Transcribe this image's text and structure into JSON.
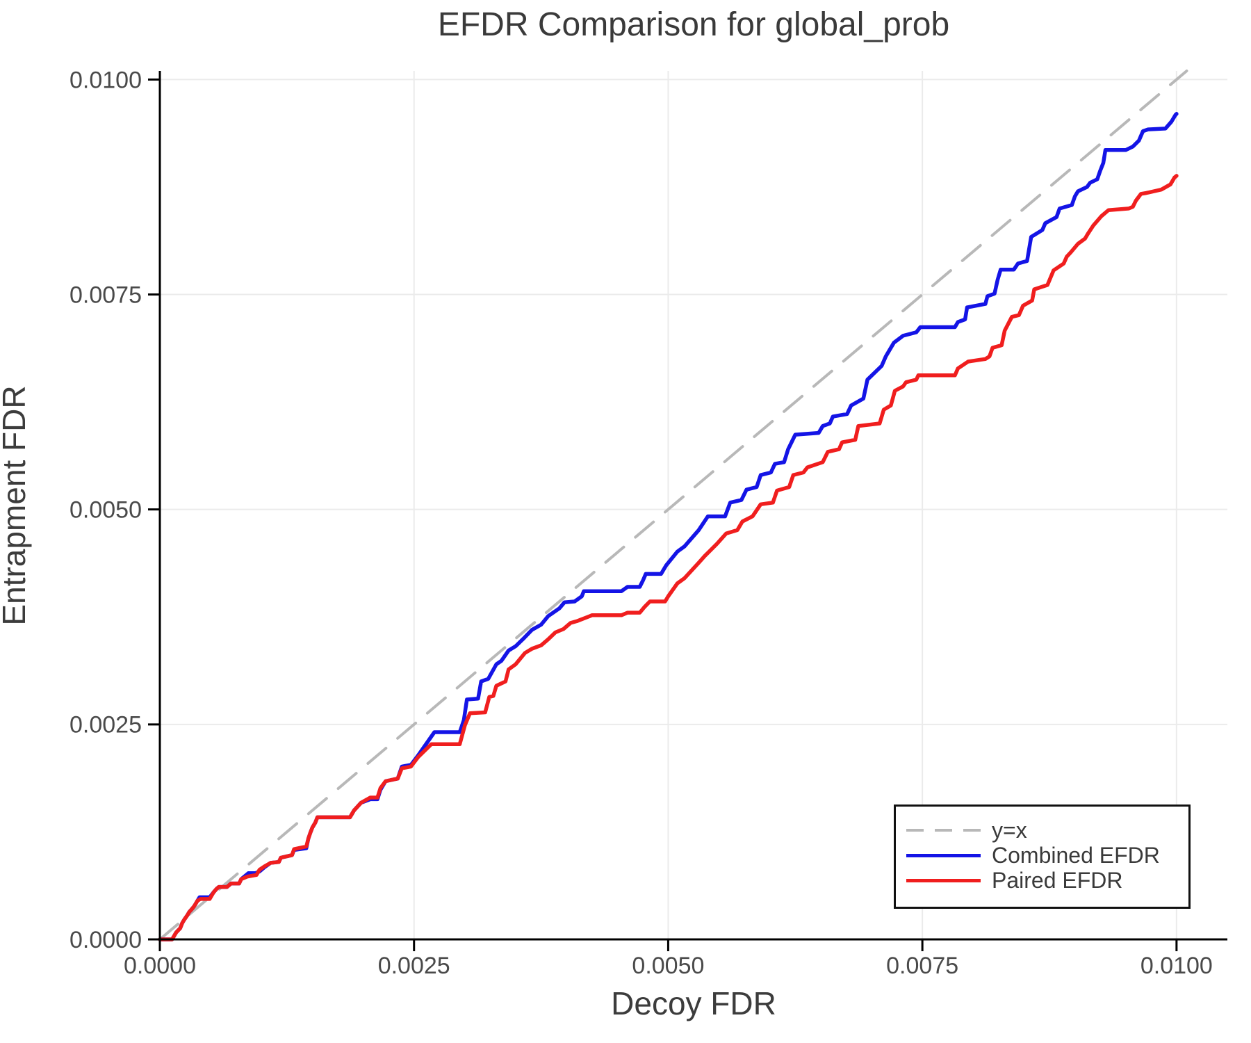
{
  "background": "#ffffff",
  "chart_data": {
    "type": "line",
    "title": "EFDR Comparison for global_prob",
    "xlabel": "Decoy FDR",
    "ylabel": "Entrapment FDR",
    "xlim": [
      0,
      0.0105
    ],
    "ylim": [
      0,
      0.0101
    ],
    "grid": true,
    "legend_position": "bottom-right",
    "x_ticks": [
      0,
      0.0025,
      0.005,
      0.0075,
      0.01
    ],
    "x_tick_labels": [
      "0.0000",
      "0.0025",
      "0.0050",
      "0.0075",
      "0.0100"
    ],
    "y_ticks": [
      0,
      0.0025,
      0.005,
      0.0075,
      0.01
    ],
    "y_tick_labels": [
      "0.0000",
      "0.0025",
      "0.0050",
      "0.0075",
      "0.0100"
    ],
    "colors": {
      "grid": "#ebebeb",
      "axis": "#000000",
      "tick_label": "#4a4a4a",
      "identity_line": "#b8b8b8",
      "combined": "#1414e6",
      "paired": "#f01e1e"
    },
    "series": [
      {
        "name": "y=x",
        "style": "dashed",
        "color": "#b8b8b8",
        "points": [
          [
            0,
            0
          ],
          [
            0.0101,
            0.0101
          ]
        ]
      },
      {
        "name": "Combined EFDR",
        "style": "solid",
        "color": "#1414e6",
        "points": [
          [
            0.0,
            0.0
          ],
          [
            0.00012,
            0.0
          ],
          [
            0.00016,
            8e-05
          ],
          [
            0.0002,
            0.00013
          ],
          [
            0.00022,
            0.00019
          ],
          [
            0.00024,
            0.00023
          ],
          [
            0.00027,
            0.00028
          ],
          [
            0.00029,
            0.00032
          ],
          [
            0.00032,
            0.00036
          ],
          [
            0.00034,
            0.00039
          ],
          [
            0.00037,
            0.00045
          ],
          [
            0.00039,
            0.00049
          ],
          [
            0.00049,
            0.00049
          ],
          [
            0.00053,
            0.00055
          ],
          [
            0.00056,
            0.00059
          ],
          [
            0.00058,
            0.00061
          ],
          [
            0.00066,
            0.00061
          ],
          [
            0.00068,
            0.00063
          ],
          [
            0.0007,
            0.00065
          ],
          [
            0.00078,
            0.00065
          ],
          [
            0.0008,
            0.0007
          ],
          [
            0.00084,
            0.00074
          ],
          [
            0.00087,
            0.00077
          ],
          [
            0.00094,
            0.00077
          ],
          [
            0.00098,
            0.00079
          ],
          [
            0.00103,
            0.00084
          ],
          [
            0.00109,
            0.00089
          ],
          [
            0.00117,
            0.0009
          ],
          [
            0.00119,
            0.00095
          ],
          [
            0.0013,
            0.00098
          ],
          [
            0.00132,
            0.00104
          ],
          [
            0.00144,
            0.00106
          ],
          [
            0.00146,
            0.00117
          ],
          [
            0.00148,
            0.00124
          ],
          [
            0.0015,
            0.0013
          ],
          [
            0.00153,
            0.00136
          ],
          [
            0.00155,
            0.00142
          ],
          [
            0.00187,
            0.00142
          ],
          [
            0.00191,
            0.0015
          ],
          [
            0.00198,
            0.00159
          ],
          [
            0.00207,
            0.00163
          ],
          [
            0.00214,
            0.00163
          ],
          [
            0.00217,
            0.00174
          ],
          [
            0.00222,
            0.00184
          ],
          [
            0.00234,
            0.00187
          ],
          [
            0.00238,
            0.00201
          ],
          [
            0.00247,
            0.00203
          ],
          [
            0.00254,
            0.00214
          ],
          [
            0.0027,
            0.00241
          ],
          [
            0.00295,
            0.00241
          ],
          [
            0.00299,
            0.00255
          ],
          [
            0.00302,
            0.00279
          ],
          [
            0.00313,
            0.0028
          ],
          [
            0.00316,
            0.003
          ],
          [
            0.00323,
            0.00303
          ],
          [
            0.00331,
            0.0032
          ],
          [
            0.00336,
            0.00324
          ],
          [
            0.00343,
            0.00336
          ],
          [
            0.0035,
            0.00341
          ],
          [
            0.00357,
            0.00349
          ],
          [
            0.00366,
            0.0036
          ],
          [
            0.00375,
            0.00366
          ],
          [
            0.00382,
            0.00376
          ],
          [
            0.00393,
            0.00385
          ],
          [
            0.00398,
            0.00392
          ],
          [
            0.00408,
            0.00393
          ],
          [
            0.00415,
            0.00399
          ],
          [
            0.00417,
            0.00405
          ],
          [
            0.00454,
            0.00405
          ],
          [
            0.0046,
            0.0041
          ],
          [
            0.00472,
            0.0041
          ],
          [
            0.00475,
            0.00417
          ],
          [
            0.00478,
            0.00425
          ],
          [
            0.00493,
            0.00425
          ],
          [
            0.00498,
            0.00435
          ],
          [
            0.00509,
            0.00451
          ],
          [
            0.00516,
            0.00457
          ],
          [
            0.0053,
            0.00476
          ],
          [
            0.00539,
            0.00492
          ],
          [
            0.00556,
            0.00492
          ],
          [
            0.00561,
            0.00508
          ],
          [
            0.00572,
            0.00511
          ],
          [
            0.00577,
            0.00523
          ],
          [
            0.00587,
            0.00526
          ],
          [
            0.00591,
            0.0054
          ],
          [
            0.00601,
            0.00543
          ],
          [
            0.00605,
            0.00553
          ],
          [
            0.00614,
            0.00555
          ],
          [
            0.00618,
            0.0057
          ],
          [
            0.00625,
            0.00587
          ],
          [
            0.00648,
            0.00589
          ],
          [
            0.00652,
            0.00597
          ],
          [
            0.00659,
            0.006
          ],
          [
            0.00662,
            0.00608
          ],
          [
            0.00676,
            0.00611
          ],
          [
            0.0068,
            0.00621
          ],
          [
            0.00692,
            0.00629
          ],
          [
            0.00696,
            0.00651
          ],
          [
            0.0071,
            0.00667
          ],
          [
            0.00714,
            0.00678
          ],
          [
            0.00722,
            0.00694
          ],
          [
            0.00731,
            0.00702
          ],
          [
            0.00744,
            0.00706
          ],
          [
            0.00748,
            0.00712
          ],
          [
            0.00782,
            0.00712
          ],
          [
            0.00785,
            0.00718
          ],
          [
            0.00792,
            0.00721
          ],
          [
            0.00794,
            0.00735
          ],
          [
            0.00812,
            0.00739
          ],
          [
            0.00814,
            0.00748
          ],
          [
            0.00821,
            0.00751
          ],
          [
            0.00824,
            0.00767
          ],
          [
            0.00827,
            0.00779
          ],
          [
            0.0084,
            0.00779
          ],
          [
            0.00844,
            0.00786
          ],
          [
            0.00853,
            0.00789
          ],
          [
            0.00857,
            0.00817
          ],
          [
            0.00868,
            0.00825
          ],
          [
            0.00871,
            0.00833
          ],
          [
            0.00882,
            0.0084
          ],
          [
            0.00885,
            0.0085
          ],
          [
            0.00897,
            0.00854
          ],
          [
            0.009,
            0.00864
          ],
          [
            0.00903,
            0.0087
          ],
          [
            0.00912,
            0.00875
          ],
          [
            0.00915,
            0.0088
          ],
          [
            0.00922,
            0.00884
          ],
          [
            0.00925,
            0.00894
          ],
          [
            0.00928,
            0.00903
          ],
          [
            0.0093,
            0.00918
          ],
          [
            0.0095,
            0.00918
          ],
          [
            0.00957,
            0.00922
          ],
          [
            0.00963,
            0.00929
          ],
          [
            0.00967,
            0.0094
          ],
          [
            0.00972,
            0.00942
          ],
          [
            0.00989,
            0.00943
          ],
          [
            0.00995,
            0.00951
          ],
          [
            0.00999,
            0.00959
          ],
          [
            0.01,
            0.0096
          ]
        ]
      },
      {
        "name": "Paired EFDR",
        "style": "solid",
        "color": "#f01e1e",
        "points": [
          [
            0.0,
            0.0
          ],
          [
            0.00012,
            0.0
          ],
          [
            0.00016,
            8e-05
          ],
          [
            0.0002,
            0.00013
          ],
          [
            0.00022,
            0.00019
          ],
          [
            0.00024,
            0.00023
          ],
          [
            0.00027,
            0.00028
          ],
          [
            0.00029,
            0.00032
          ],
          [
            0.00032,
            0.00036
          ],
          [
            0.00034,
            0.00039
          ],
          [
            0.00037,
            0.00045
          ],
          [
            0.0004,
            0.00047
          ],
          [
            0.00049,
            0.00047
          ],
          [
            0.00053,
            0.00055
          ],
          [
            0.00056,
            0.00059
          ],
          [
            0.00058,
            0.00061
          ],
          [
            0.00066,
            0.00061
          ],
          [
            0.00068,
            0.00063
          ],
          [
            0.0007,
            0.00065
          ],
          [
            0.00078,
            0.00065
          ],
          [
            0.0008,
            0.0007
          ],
          [
            0.00086,
            0.00073
          ],
          [
            0.00095,
            0.00075
          ],
          [
            0.00098,
            0.00081
          ],
          [
            0.00103,
            0.00085
          ],
          [
            0.00109,
            0.00089
          ],
          [
            0.00117,
            0.0009
          ],
          [
            0.00119,
            0.00095
          ],
          [
            0.0013,
            0.00098
          ],
          [
            0.00132,
            0.00105
          ],
          [
            0.00144,
            0.00108
          ],
          [
            0.00146,
            0.00117
          ],
          [
            0.00148,
            0.00124
          ],
          [
            0.0015,
            0.0013
          ],
          [
            0.00153,
            0.00136
          ],
          [
            0.00155,
            0.00142
          ],
          [
            0.00187,
            0.00142
          ],
          [
            0.00191,
            0.0015
          ],
          [
            0.00198,
            0.00159
          ],
          [
            0.00207,
            0.00165
          ],
          [
            0.00214,
            0.00165
          ],
          [
            0.00217,
            0.00176
          ],
          [
            0.00222,
            0.00184
          ],
          [
            0.00234,
            0.00187
          ],
          [
            0.00238,
            0.00199
          ],
          [
            0.00247,
            0.00201
          ],
          [
            0.00254,
            0.00212
          ],
          [
            0.00267,
            0.00227
          ],
          [
            0.00295,
            0.00227
          ],
          [
            0.003,
            0.00249
          ],
          [
            0.00305,
            0.00263
          ],
          [
            0.0032,
            0.00264
          ],
          [
            0.00324,
            0.00282
          ],
          [
            0.00328,
            0.00283
          ],
          [
            0.00331,
            0.00295
          ],
          [
            0.0034,
            0.003
          ],
          [
            0.00343,
            0.00314
          ],
          [
            0.0035,
            0.0032
          ],
          [
            0.00359,
            0.00333
          ],
          [
            0.00366,
            0.00338
          ],
          [
            0.00375,
            0.00342
          ],
          [
            0.00382,
            0.00349
          ],
          [
            0.00389,
            0.00357
          ],
          [
            0.00397,
            0.00361
          ],
          [
            0.00404,
            0.00368
          ],
          [
            0.0041,
            0.0037
          ],
          [
            0.00423,
            0.00376
          ],
          [
            0.00425,
            0.00377
          ],
          [
            0.00454,
            0.00377
          ],
          [
            0.0046,
            0.0038
          ],
          [
            0.00472,
            0.0038
          ],
          [
            0.00477,
            0.00387
          ],
          [
            0.00482,
            0.00393
          ],
          [
            0.00497,
            0.00393
          ],
          [
            0.005,
            0.00399
          ],
          [
            0.00509,
            0.00414
          ],
          [
            0.00516,
            0.0042
          ],
          [
            0.0053,
            0.00438
          ],
          [
            0.00536,
            0.00446
          ],
          [
            0.00548,
            0.0046
          ],
          [
            0.00557,
            0.00472
          ],
          [
            0.00568,
            0.00476
          ],
          [
            0.00573,
            0.00486
          ],
          [
            0.00583,
            0.00492
          ],
          [
            0.00591,
            0.00506
          ],
          [
            0.00603,
            0.00508
          ],
          [
            0.00607,
            0.00522
          ],
          [
            0.00619,
            0.00526
          ],
          [
            0.00623,
            0.0054
          ],
          [
            0.00633,
            0.00543
          ],
          [
            0.00637,
            0.00549
          ],
          [
            0.00652,
            0.00555
          ],
          [
            0.00657,
            0.00567
          ],
          [
            0.00668,
            0.0057
          ],
          [
            0.00671,
            0.00578
          ],
          [
            0.00684,
            0.00581
          ],
          [
            0.00687,
            0.00597
          ],
          [
            0.00708,
            0.006
          ],
          [
            0.00712,
            0.00616
          ],
          [
            0.00719,
            0.00621
          ],
          [
            0.00723,
            0.00638
          ],
          [
            0.00731,
            0.00643
          ],
          [
            0.00734,
            0.00648
          ],
          [
            0.00744,
            0.00651
          ],
          [
            0.00746,
            0.00656
          ],
          [
            0.00782,
            0.00656
          ],
          [
            0.00785,
            0.00664
          ],
          [
            0.00795,
            0.00672
          ],
          [
            0.00812,
            0.00675
          ],
          [
            0.00816,
            0.00678
          ],
          [
            0.00819,
            0.00688
          ],
          [
            0.00828,
            0.00691
          ],
          [
            0.00831,
            0.00708
          ],
          [
            0.00838,
            0.00724
          ],
          [
            0.00845,
            0.00726
          ],
          [
            0.00849,
            0.00737
          ],
          [
            0.00858,
            0.00743
          ],
          [
            0.0086,
            0.00756
          ],
          [
            0.00873,
            0.00761
          ],
          [
            0.00879,
            0.00778
          ],
          [
            0.00889,
            0.00786
          ],
          [
            0.00892,
            0.00794
          ],
          [
            0.00896,
            0.00799
          ],
          [
            0.00903,
            0.00809
          ],
          [
            0.0091,
            0.00815
          ],
          [
            0.00913,
            0.00821
          ],
          [
            0.00918,
            0.0083
          ],
          [
            0.00926,
            0.00841
          ],
          [
            0.00933,
            0.00848
          ],
          [
            0.00953,
            0.0085
          ],
          [
            0.00957,
            0.00852
          ],
          [
            0.0096,
            0.00859
          ],
          [
            0.00965,
            0.00867
          ],
          [
            0.0097,
            0.00868
          ],
          [
            0.00985,
            0.00872
          ],
          [
            0.00994,
            0.00878
          ],
          [
            0.00998,
            0.00886
          ],
          [
            0.01,
            0.00888
          ]
        ]
      }
    ]
  }
}
